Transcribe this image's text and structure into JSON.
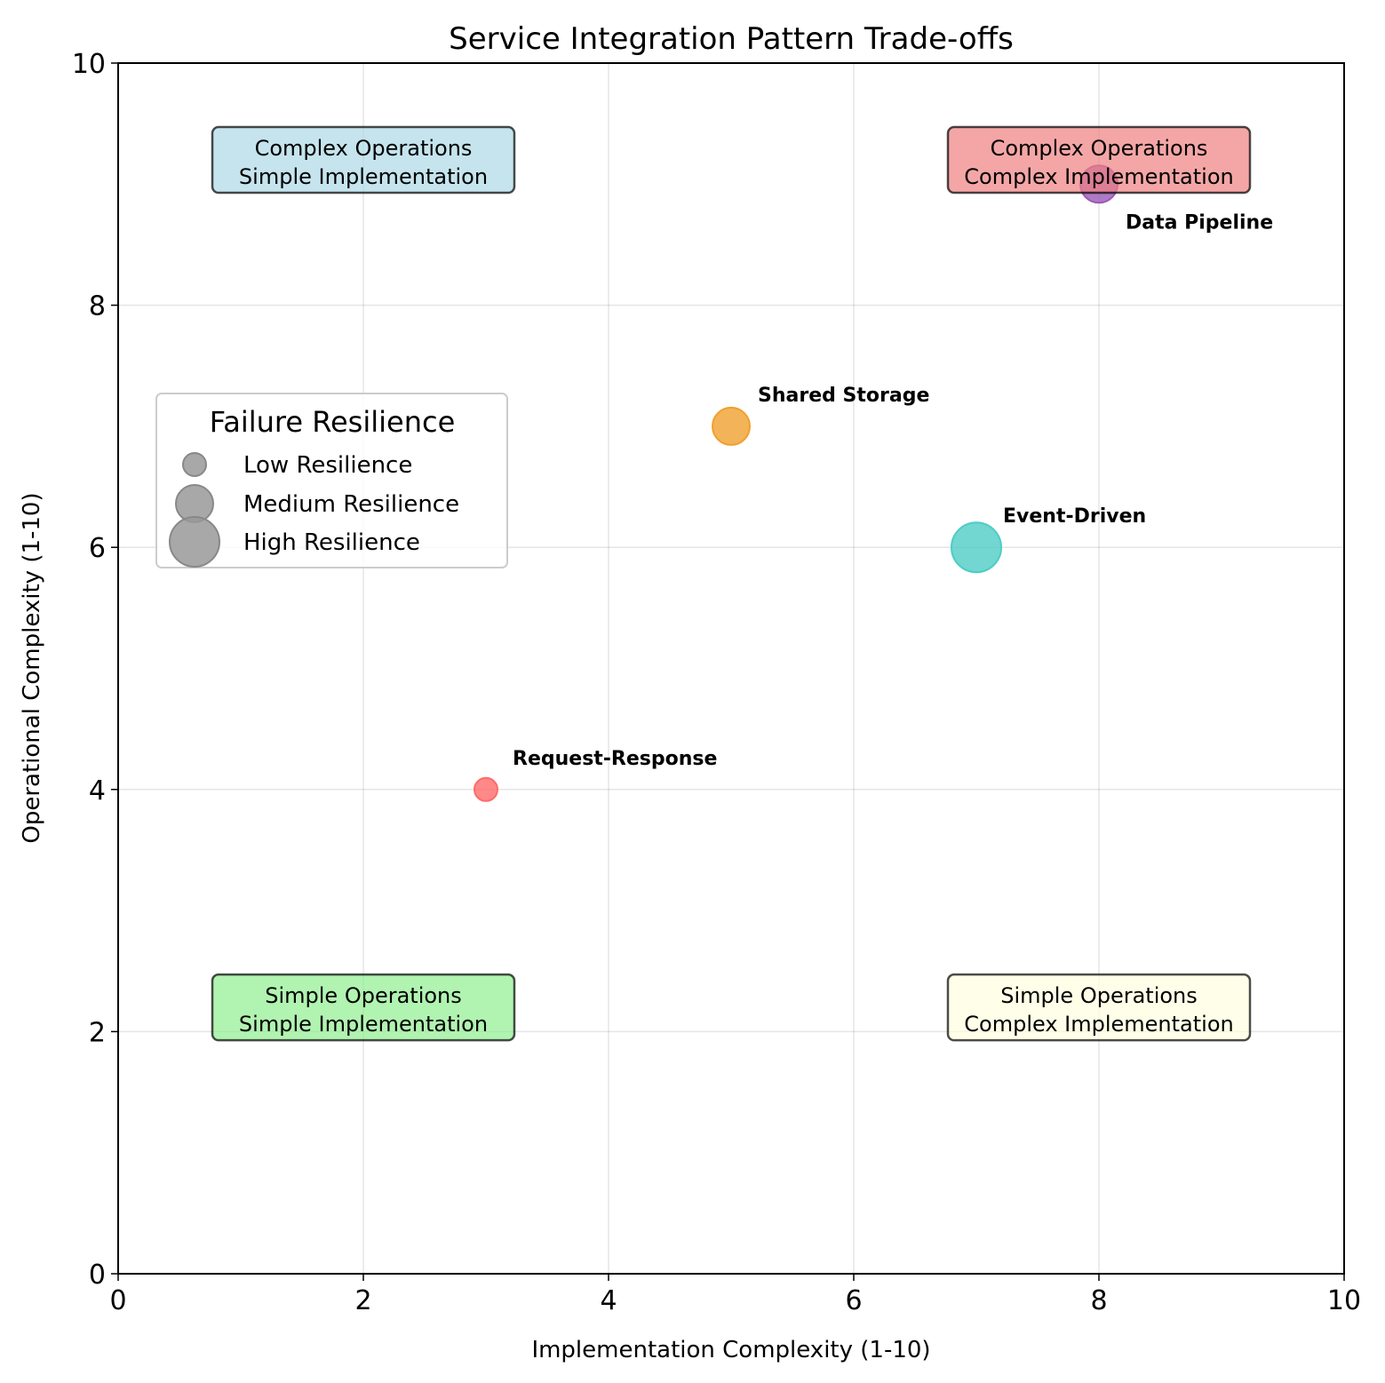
{
  "chart_data": {
    "type": "scatter",
    "title": "Service Integration Pattern Trade-offs",
    "xlabel": "Implementation Complexity (1-10)",
    "ylabel": "Operational Complexity (1-10)",
    "xlim": [
      0,
      10
    ],
    "ylim": [
      0,
      10
    ],
    "xticks": [
      "0",
      "2",
      "4",
      "6",
      "8",
      "10"
    ],
    "yticks": [
      "0",
      "2",
      "4",
      "6",
      "8",
      "10"
    ],
    "grid": true,
    "points": [
      {
        "label": "Request-Response",
        "x": 3,
        "y": 4,
        "resilience": "Low",
        "color": "#ff6b6b"
      },
      {
        "label": "Shared Storage",
        "x": 5,
        "y": 7,
        "resilience": "Medium",
        "color": "#f0a030"
      },
      {
        "label": "Event-Driven",
        "x": 7,
        "y": 6,
        "resilience": "High",
        "color": "#4ecdc4"
      },
      {
        "label": "Data Pipeline",
        "x": 8,
        "y": 9,
        "resilience": "Medium",
        "color": "#9b59b6"
      }
    ],
    "quadrants": [
      {
        "line1": "Complex Operations",
        "line2": "Simple Implementation",
        "x": 2,
        "y": 9.2,
        "color": "#add8e6"
      },
      {
        "line1": "Complex Operations",
        "line2": "Complex Implementation",
        "x": 8,
        "y": 9.2,
        "color": "#f08080"
      },
      {
        "line1": "Simple Operations",
        "line2": "Simple Implementation",
        "x": 2,
        "y": 2.2,
        "color": "#90ee90"
      },
      {
        "line1": "Simple Operations",
        "line2": "Complex Implementation",
        "x": 8,
        "y": 2.2,
        "color": "#ffffe0"
      }
    ],
    "legend": {
      "title": "Failure Resilience",
      "placement": "top-left",
      "entries": [
        {
          "label": "Low Resilience",
          "size": "Low"
        },
        {
          "label": "Medium Resilience",
          "size": "Medium"
        },
        {
          "label": "High Resilience",
          "size": "High"
        }
      ]
    }
  }
}
